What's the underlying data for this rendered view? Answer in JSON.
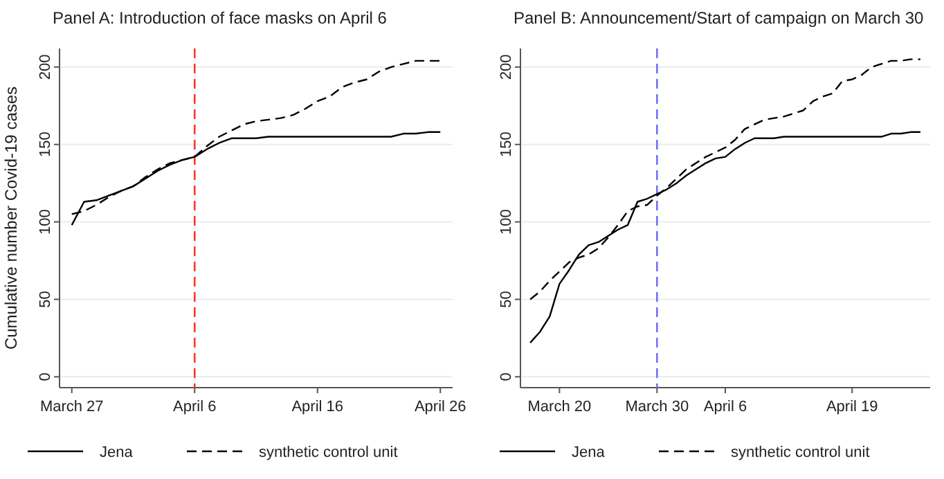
{
  "chart_data": [
    {
      "type": "line",
      "title": "Panel A: Introduction of face masks on April 6",
      "ylabel": "Cumulative number Covid-19 cases",
      "x": [
        "--03-27",
        "--03-28",
        "--03-29",
        "--03-30",
        "--03-31",
        "--04-01",
        "--04-02",
        "--04-03",
        "--04-04",
        "--04-05",
        "--04-06",
        "--04-07",
        "--04-08",
        "--04-09",
        "--04-10",
        "--04-11",
        "--04-12",
        "--04-13",
        "--04-14",
        "--04-15",
        "--04-16",
        "--04-17",
        "--04-18",
        "--04-19",
        "--04-20",
        "--04-21",
        "--04-22",
        "--04-23",
        "--04-24",
        "--04-25",
        "--04-26"
      ],
      "series": [
        {
          "name": "Jena",
          "color": "#000000",
          "line_style": "solid",
          "values": [
            98,
            113,
            114,
            117,
            120,
            123,
            128,
            133,
            137,
            140,
            142,
            147,
            151,
            154,
            154,
            154,
            155,
            155,
            155,
            155,
            155,
            155,
            155,
            155,
            155,
            155,
            155,
            157,
            157,
            158,
            158
          ]
        },
        {
          "name": "synthetic control unit",
          "color": "#000000",
          "line_style": "dashed",
          "values": [
            105,
            107,
            111,
            116,
            120,
            123,
            129,
            134,
            138,
            140,
            142,
            149,
            155,
            159,
            163,
            165,
            166,
            167,
            169,
            173,
            178,
            181,
            187,
            190,
            192,
            197,
            200,
            202,
            204,
            204,
            204
          ]
        }
      ],
      "xlim": [
        "--03-26",
        "--04-27"
      ],
      "xticks": [
        {
          "value": "--03-27",
          "label": "March 27"
        },
        {
          "value": "--04-06",
          "label": "April 6"
        },
        {
          "value": "--04-16",
          "label": "April 16"
        },
        {
          "value": "--04-26",
          "label": "April 26"
        }
      ],
      "ylim": [
        -7,
        212
      ],
      "yticks": [
        0,
        50,
        100,
        150,
        200
      ],
      "grid": "y",
      "legend": "bottom",
      "ref_lines": [
        {
          "axis": "x",
          "value": "--04-06",
          "color": "#ff3333",
          "line_style": "dashed"
        }
      ]
    },
    {
      "type": "line",
      "title": "Panel B: Announcement/Start of campaign on March 30",
      "x": [
        "--03-17",
        "--03-18",
        "--03-19",
        "--03-20",
        "--03-21",
        "--03-22",
        "--03-23",
        "--03-24",
        "--03-25",
        "--03-26",
        "--03-27",
        "--03-28",
        "--03-29",
        "--03-30",
        "--03-31",
        "--04-01",
        "--04-02",
        "--04-03",
        "--04-04",
        "--04-05",
        "--04-06",
        "--04-07",
        "--04-08",
        "--04-09",
        "--04-10",
        "--04-11",
        "--04-12",
        "--04-13",
        "--04-14",
        "--04-15",
        "--04-16",
        "--04-17",
        "--04-18",
        "--04-19",
        "--04-20",
        "--04-21",
        "--04-22",
        "--04-23",
        "--04-24",
        "--04-25",
        "--04-26"
      ],
      "series": [
        {
          "name": "Jena",
          "color": "#000000",
          "line_style": "solid",
          "values": [
            22,
            29,
            39,
            60,
            69,
            79,
            85,
            87,
            91,
            95,
            98,
            113,
            115,
            118,
            121,
            125,
            130,
            134,
            138,
            141,
            142,
            147,
            151,
            154,
            154,
            154,
            155,
            155,
            155,
            155,
            155,
            155,
            155,
            155,
            155,
            155,
            155,
            157,
            157,
            158,
            158
          ]
        },
        {
          "name": "synthetic control unit",
          "color": "#000000",
          "line_style": "dashed",
          "values": [
            50,
            55,
            62,
            68,
            74,
            77,
            79,
            83,
            90,
            98,
            107,
            110,
            111,
            117,
            122,
            128,
            134,
            138,
            142,
            145,
            148,
            153,
            160,
            163,
            166,
            167,
            168,
            170,
            172,
            178,
            181,
            183,
            191,
            192,
            195,
            200,
            202,
            204,
            204,
            205,
            205
          ]
        }
      ],
      "xlim": [
        "--03-16",
        "--04-27"
      ],
      "xticks": [
        {
          "value": "--03-20",
          "label": "March 20"
        },
        {
          "value": "--03-30",
          "label": "March 30"
        },
        {
          "value": "--04-06",
          "label": "April 6"
        },
        {
          "value": "--04-19",
          "label": "April 19"
        }
      ],
      "ylim": [
        -7,
        212
      ],
      "yticks": [
        0,
        50,
        100,
        150,
        200
      ],
      "grid": "y",
      "legend": "bottom",
      "ref_lines": [
        {
          "axis": "x",
          "value": "--03-30",
          "color": "#7070ff",
          "line_style": "dashed"
        }
      ]
    }
  ]
}
